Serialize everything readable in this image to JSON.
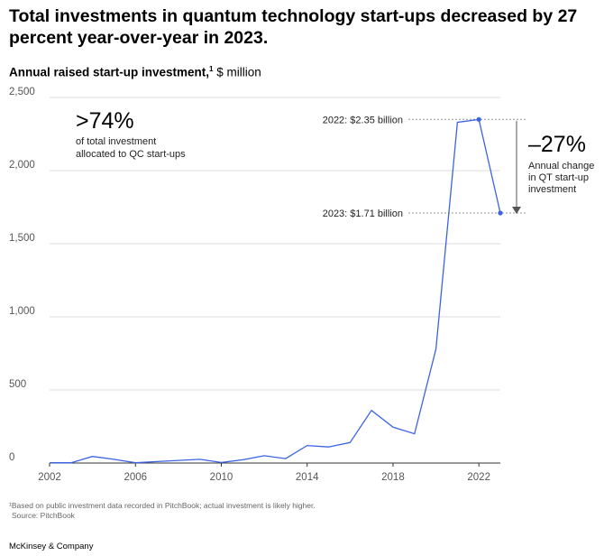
{
  "title": "Total investments in quantum technology start-ups decreased by 27 percent year-over-year in 2023.",
  "subtitle": {
    "bold": "Annual raised start-up investment,",
    "sup": "1",
    "rest": " $ million"
  },
  "chart_data": {
    "type": "line",
    "x": [
      2002,
      2003,
      2004,
      2005,
      2006,
      2007,
      2008,
      2009,
      2010,
      2011,
      2012,
      2013,
      2014,
      2015,
      2016,
      2017,
      2018,
      2019,
      2020,
      2021,
      2022,
      2023
    ],
    "series": [
      {
        "values": [
          2,
          2,
          45,
          25,
          2,
          10,
          18,
          25,
          4,
          22,
          50,
          30,
          120,
          110,
          140,
          360,
          245,
          200,
          780,
          2330,
          2350,
          1710
        ]
      }
    ],
    "xlim": [
      2002,
      2023
    ],
    "ylim": [
      0,
      2500
    ],
    "xticks": [
      2002,
      2006,
      2010,
      2014,
      2018,
      2022
    ],
    "yticks": [
      0,
      500,
      1000,
      1500,
      2000,
      2500
    ],
    "ytick_labels": [
      "0",
      "500",
      "1,000",
      "1,500",
      "2,000",
      "2,500"
    ],
    "grid": true,
    "line_color": "#3b63e3",
    "highlight_points": [
      {
        "x": 2022,
        "y": 2350,
        "label": "2022: $2.35 billion"
      },
      {
        "x": 2023,
        "y": 1710,
        "label": "2023: $1.71 billion"
      }
    ],
    "annotations": {
      "share_big": ">74%",
      "share_line1": "of total investment",
      "share_line2": "allocated to QC start-ups",
      "change_big": "–27%",
      "change_line1": "Annual change",
      "change_line2": "in QT start-up",
      "change_line3": "investment"
    }
  },
  "footnote": "¹Based on public investment data recorded in PitchBook; actual investment is likely higher.",
  "source": "Source: PitchBook",
  "brand": "McKinsey & Company"
}
